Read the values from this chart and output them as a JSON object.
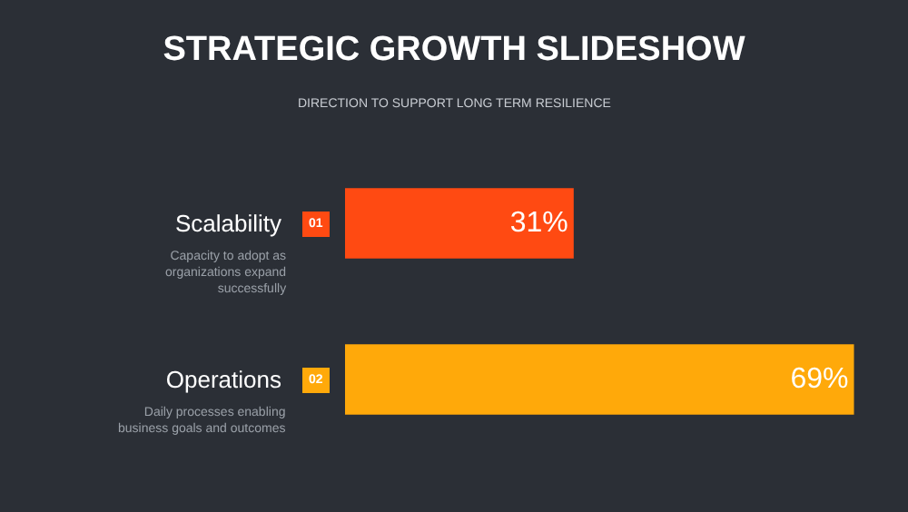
{
  "chart_data": {
    "type": "bar",
    "orientation": "horizontal",
    "title": "STRATEGIC GROWTH SLIDESHOW",
    "subtitle": "DIRECTION TO SUPPORT LONG TERM RESILIENCE",
    "categories": [
      "Scalability",
      "Operations"
    ],
    "values": [
      31,
      69
    ],
    "colors": [
      "#ff4a12",
      "#ffa90a"
    ],
    "value_labels": [
      "31%",
      "69%"
    ],
    "annotations": [
      "01",
      "Capacity to adopt as organizations expand successfully",
      "02",
      "Daily processes enabling business goals and outcomes"
    ]
  }
}
